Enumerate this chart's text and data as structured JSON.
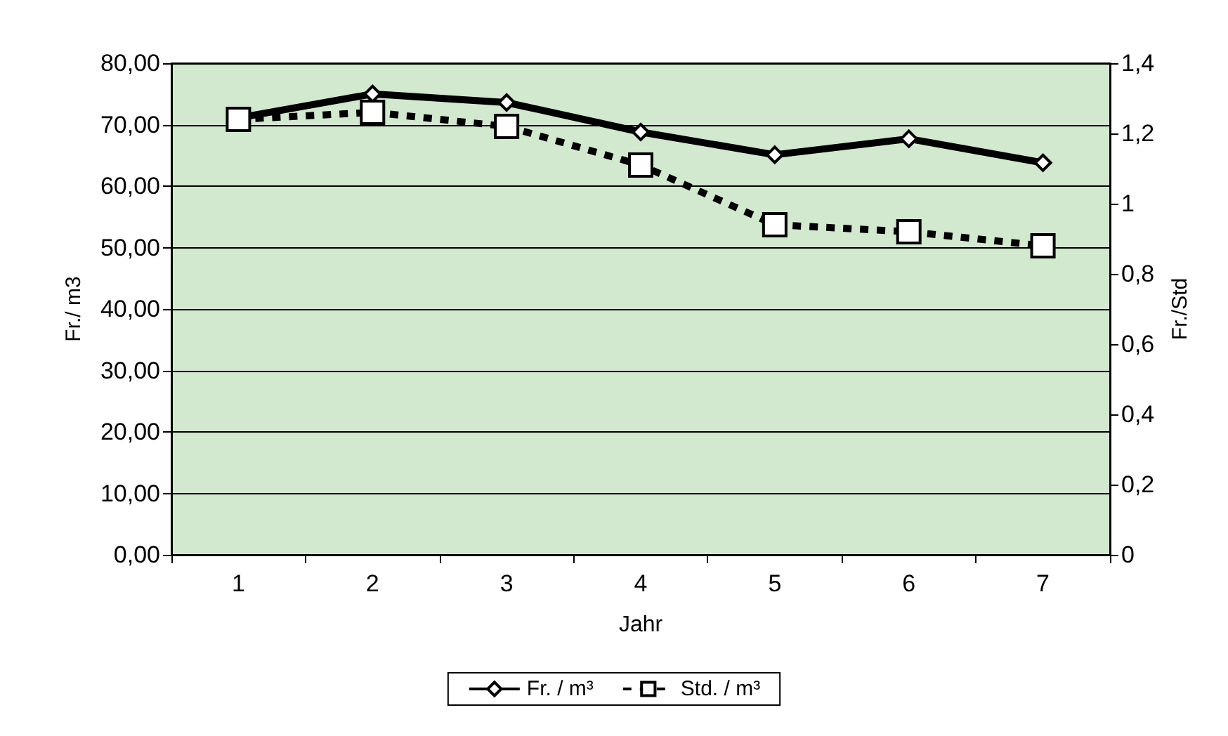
{
  "chart_data": {
    "type": "line",
    "xlabel": "Jahr",
    "ylabel": "Fr./ m3",
    "y2label": "Fr./Std",
    "categories": [
      "1",
      "2",
      "3",
      "4",
      "5",
      "6",
      "7"
    ],
    "series": [
      {
        "name": "Fr. / m³",
        "color": "#000000",
        "marker": "diamond",
        "line_style": "solid",
        "values": [
          71.1,
          75.0,
          73.6,
          68.8,
          65.1,
          67.7,
          63.8
        ]
      },
      {
        "name": "Std. / m³",
        "color": "#000000",
        "marker": "square",
        "line_style": "dashed",
        "axis": "y2",
        "values": [
          1.24,
          1.26,
          1.22,
          1.11,
          0.94,
          0.92,
          0.88
        ]
      }
    ],
    "ylim": [
      0,
      80
    ],
    "yticks": [
      {
        "value": 0,
        "label": "0,00"
      },
      {
        "value": 10,
        "label": "10,00"
      },
      {
        "value": 20,
        "label": "20,00"
      },
      {
        "value": 30,
        "label": "30,00"
      },
      {
        "value": 40,
        "label": "40,00"
      },
      {
        "value": 50,
        "label": "50,00"
      },
      {
        "value": 60,
        "label": "60,00"
      },
      {
        "value": 70,
        "label": "70,00"
      },
      {
        "value": 80,
        "label": "80,00"
      }
    ],
    "y2lim": [
      0,
      1.4
    ],
    "y2ticks": [
      0,
      {
        "value": 0.2,
        "label": "0,2"
      },
      {
        "value": 0.4,
        "label": "0,4"
      },
      {
        "value": 0.6,
        "label": "0,6"
      },
      {
        "value": 0.8,
        "label": "0,8"
      },
      1,
      {
        "value": 1.2,
        "label": "1,2"
      },
      {
        "value": 1.4,
        "label": "1,4"
      }
    ],
    "grid": "y",
    "legend": "bottom"
  }
}
